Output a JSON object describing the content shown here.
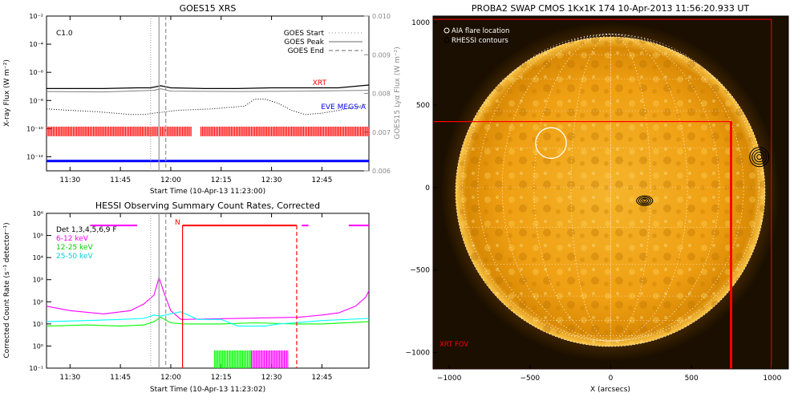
{
  "chart_data": [
    {
      "type": "line",
      "title": "GOES15 XRS",
      "flare_class": "C1.0",
      "xlabel": "Start Time (10-Apr-13 11:23:00)",
      "ylabel": "X-ray Flux (W m⁻²)",
      "y2label": "GOES15 Lyα Flux (W m⁻²)",
      "x_ticks": [
        "11:30",
        "11:45",
        "12:00",
        "12:15",
        "12:30",
        "12:45"
      ],
      "x_tick_min": [
        30,
        45,
        60,
        75,
        90,
        105
      ],
      "xlim_min": [
        23,
        119
      ],
      "y_ticks": [
        "10⁻²",
        "10⁻⁴",
        "10⁻⁶",
        "10⁻⁸",
        "10⁻¹⁰",
        "10⁻¹²"
      ],
      "y_tick_exp": [
        -2,
        -4,
        -6,
        -8,
        -10,
        -12
      ],
      "ylim_log10": [
        -13,
        -2
      ],
      "y2_ticks": [
        "0.010",
        "0.009",
        "0.008",
        "0.007",
        "0.006"
      ],
      "y2_tick_vals": [
        0.01,
        0.009,
        0.008,
        0.007,
        0.006
      ],
      "y2lim": [
        0.006,
        0.01
      ],
      "legend": [
        "GOES Start",
        "GOES Peak",
        "GOES End"
      ],
      "event_lines_min": {
        "start": 54.0,
        "peak": 56.5,
        "end": 58.5
      },
      "series": [
        {
          "name": "XRT",
          "color": "#ff0000",
          "x": [
            23,
            45,
            54,
            56,
            58,
            65,
            90,
            110,
            119
          ],
          "y_log10": [
            -7.1,
            -7.15,
            -7.1,
            -7.0,
            -7.1,
            -7.1,
            -7.1,
            -7.1,
            -6.9
          ]
        },
        {
          "name": "EVE MEGS-A",
          "color": "#0000ff",
          "x": [
            23,
            119
          ],
          "y_log10": [
            -12.3,
            -12.3
          ]
        }
      ],
      "goes_long": {
        "color": "#000000",
        "x": [
          23,
          40,
          50,
          54,
          57,
          60,
          70,
          80,
          90,
          100,
          110,
          119
        ],
        "y_log10": [
          -7.15,
          -7.15,
          -7.1,
          -7.1,
          -6.95,
          -7.1,
          -7.15,
          -7.15,
          -7.1,
          -7.1,
          -7.1,
          -6.9
        ]
      },
      "lyman_alpha": {
        "color": "#808080",
        "x": [
          23,
          40,
          55,
          57,
          60,
          80,
          100,
          119
        ],
        "y": [
          0.00805,
          0.00804,
          0.00808,
          0.00812,
          0.00806,
          0.00805,
          0.00806,
          0.00808
        ]
      },
      "goes_short": {
        "color": "#000000",
        "x": [
          23,
          30,
          38,
          48,
          52,
          55,
          62,
          72,
          82,
          85,
          88,
          92,
          96,
          100,
          105,
          110,
          114,
          118
        ],
        "y_log10": [
          -8.6,
          -8.7,
          -8.8,
          -9.0,
          -9.0,
          -8.9,
          -8.7,
          -8.6,
          -8.4,
          -7.9,
          -7.9,
          -8.2,
          -8.7,
          -9.0,
          -8.9,
          -8.7,
          -8.5,
          -8.3
        ]
      },
      "coverage_bars": {
        "color": "#ff0000",
        "y_log10": -10.2,
        "segments_min": [
          [
            23,
            66
          ],
          [
            69,
            119
          ]
        ]
      }
    },
    {
      "type": "line",
      "title": "HESSI Observing Summary Count Rates, Corrected",
      "xlabel": "Start Time (10-Apr-13 11:23:02)",
      "ylabel": "Corrected Count Rate (s⁻¹ detector⁻¹)",
      "x_ticks": [
        "11:30",
        "11:45",
        "12:00",
        "12:15",
        "12:30",
        "12:45"
      ],
      "x_tick_min": [
        30,
        45,
        60,
        75,
        90,
        105
      ],
      "xlim_min": [
        23,
        119
      ],
      "y_ticks": [
        "10⁶",
        "10⁵",
        "10⁴",
        "10³",
        "10²",
        "10¹",
        "10⁰",
        "10⁻¹"
      ],
      "y_tick_exp": [
        6,
        5,
        4,
        3,
        2,
        1,
        0,
        -1
      ],
      "ylim_log10": [
        -1,
        6
      ],
      "legend": [
        {
          "label": "Det 1,3,4,5,6,9 F",
          "color": "#000000"
        },
        {
          "label": "6-12 keV",
          "color": "#ff00ff"
        },
        {
          "label": "12-25 keV",
          "color": "#00ff00"
        },
        {
          "label": "25-50 keV",
          "color": "#00ffff"
        }
      ],
      "night_label": "N",
      "event_lines_min": {
        "start": 54.0,
        "peak": 56.5,
        "end": 58.5
      },
      "night_start_min": 63.5,
      "night_end_min": 97.5,
      "series": [
        {
          "name": "6-12 keV",
          "color": "#ff00ff",
          "x": [
            23,
            30,
            40,
            48,
            52,
            55,
            56.5,
            58,
            60,
            63,
            98,
            105,
            110,
            115,
            118,
            119
          ],
          "y_log10": [
            1.8,
            1.6,
            1.45,
            1.6,
            1.9,
            2.3,
            3.1,
            2.4,
            1.6,
            1.2,
            1.3,
            1.4,
            1.5,
            1.8,
            2.2,
            2.5
          ]
        },
        {
          "name": "12-25 keV",
          "color": "#00ff00",
          "x": [
            23,
            35,
            45,
            52,
            55,
            57,
            60,
            64,
            75,
            85,
            97,
            105,
            119
          ],
          "y_log10": [
            0.9,
            0.95,
            0.9,
            0.95,
            1.1,
            1.3,
            1.05,
            1.0,
            1.0,
            1.05,
            1.0,
            1.0,
            1.1
          ]
        },
        {
          "name": "25-50 keV",
          "color": "#00ffff",
          "x": [
            23,
            35,
            45,
            52,
            55,
            57,
            60,
            63,
            68,
            75,
            80,
            88,
            92,
            97,
            105,
            119
          ],
          "y_log10": [
            1.1,
            1.15,
            1.2,
            1.25,
            1.4,
            1.35,
            1.45,
            1.55,
            1.2,
            1.2,
            0.9,
            0.9,
            1.0,
            1.05,
            1.15,
            1.25
          ]
        }
      ],
      "flag_bars": [
        {
          "color": "#ff00ff",
          "y_log10": 5.45,
          "segments_min": [
            [
              36,
              50
            ]
          ]
        },
        {
          "color": "#ff0000",
          "y_log10": 5.45,
          "segments_min": [
            [
              63.5,
              97.5
            ]
          ]
        },
        {
          "color": "#ff00ff",
          "y_log10": 5.45,
          "segments_min": [
            [
              99,
              101
            ],
            [
              113,
              119
            ]
          ]
        }
      ],
      "green_spikes": {
        "x_range_min": [
          73,
          84
        ],
        "y_log10": [
          -1,
          -0.2
        ]
      },
      "magenta_spikes": {
        "x_range_min": [
          84,
          95
        ],
        "y_log10": [
          -1,
          -0.2
        ]
      }
    },
    {
      "type": "image",
      "title": "PROBA2 SWAP CMOS 1Kx1K 174 10-Apr-2013 11:56:20.933 UT",
      "xlabel": "X (arcsecs)",
      "ylabel": "",
      "x_ticks": [
        "−1000",
        "−500",
        "0",
        "500",
        "1000"
      ],
      "x_tick_vals": [
        -1000,
        -500,
        0,
        500,
        1000
      ],
      "y_ticks": [
        "1000",
        "500",
        "0",
        "−500",
        "−1000"
      ],
      "y_tick_vals": [
        1000,
        500,
        0,
        -500,
        -1000
      ],
      "xlim": [
        -1100,
        1100
      ],
      "ylim": [
        -1100,
        1040
      ],
      "legend": [
        "AIA flare location",
        "RHESSI contours"
      ],
      "fov_label": "XRT FOV",
      "solar_radius_arcsec": 950,
      "aia_flare_location": {
        "x": -370,
        "y": 270,
        "r": 95
      },
      "rhessi_contours": [
        {
          "x": 920,
          "y": 185
        },
        {
          "x": 210,
          "y": -80
        }
      ],
      "xrt_fov": {
        "x0": -1100,
        "x1": 745,
        "y0": -1100,
        "y1": 400
      },
      "outer_box": {
        "x0": -1100,
        "x1": 995,
        "y0": -1100,
        "y1": 1020
      },
      "colors": {
        "background": "#1a0f00",
        "disk_inner": "#f3b126",
        "disk_outer": "#a76402",
        "fov": "#ff0000",
        "aia_circle": "#ffffff"
      }
    }
  ]
}
